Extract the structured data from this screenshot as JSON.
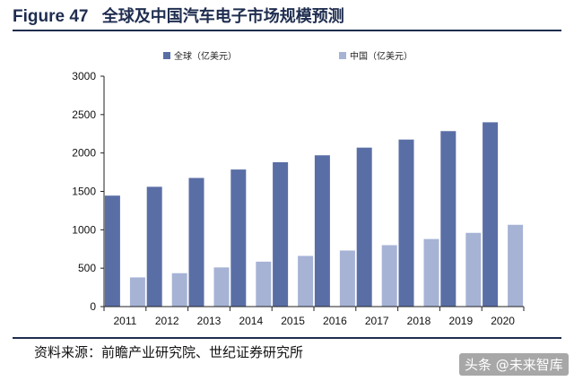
{
  "figure": {
    "number": "Figure 47",
    "title": "全球及中国汽车电子市场规模预测"
  },
  "source": "资料来源：前瞻产业研究院、世纪证券研究所",
  "watermark": "头条 @未来智库",
  "chart_data": {
    "type": "bar",
    "categories": [
      "2011",
      "2012",
      "2013",
      "2014",
      "2015",
      "2016",
      "2017",
      "2018",
      "2019",
      "2020"
    ],
    "series": [
      {
        "name": "全球（亿美元）",
        "color": "#5a6ea6",
        "values": [
          1445,
          1560,
          1675,
          1785,
          1880,
          1970,
          2070,
          2175,
          2285,
          2400
        ]
      },
      {
        "name": "中国（亿美元）",
        "color": "#a6b3d5",
        "values": [
          380,
          435,
          510,
          585,
          660,
          730,
          800,
          880,
          960,
          1065
        ]
      }
    ],
    "ylim": [
      0,
      3000
    ],
    "yticks": [
      0,
      500,
      1000,
      1500,
      2000,
      2500,
      3000
    ],
    "grid": false,
    "legend": "top"
  }
}
